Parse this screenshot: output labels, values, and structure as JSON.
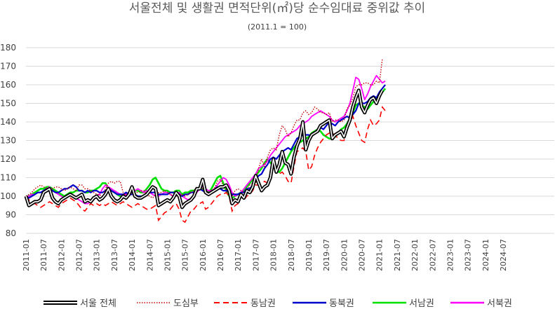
{
  "chart_data": {
    "type": "line",
    "title": "서울전체 및 생활권 면적단위(㎡)당 순수임대료 중위값 추이",
    "subtitle": "(2011.1 = 100)",
    "ylim": [
      80,
      180
    ],
    "yticks": [
      "80",
      "90",
      "100",
      "110",
      "120",
      "130",
      "140",
      "150",
      "160",
      "170",
      "180"
    ],
    "xticks": [
      "2011-01",
      "2011-07",
      "2012-01",
      "2012-07",
      "2013-01",
      "2013-07",
      "2014-01",
      "2014-07",
      "2015-01",
      "2015-07",
      "2016-01",
      "2016-07",
      "2017-01",
      "2017-07",
      "2018-01",
      "2018-07",
      "2019-01",
      "2019-07",
      "2020-01",
      "2020-07",
      "2021-01",
      "2021-07",
      "2022-01",
      "2022-07",
      "2023-01",
      "2023-07",
      "2024-01",
      "2024-07"
    ],
    "legend_position": "bottom",
    "grid": "horizontal",
    "x_monthly_from": "2011-01",
    "series": [
      {
        "name": "서울 전체",
        "color": "#000000",
        "style": "double",
        "values": [
          100,
          95,
          96,
          97,
          97,
          98,
          102,
          103,
          104,
          99,
          97,
          96,
          98,
          99,
          100,
          101,
          100,
          99,
          100,
          101,
          97,
          98,
          97,
          99,
          100,
          98,
          99,
          101,
          104,
          100,
          98,
          97,
          98,
          100,
          99,
          101,
          105,
          100,
          99,
          99,
          100,
          101,
          103,
          105,
          104,
          95,
          96,
          97,
          98,
          97,
          99,
          102,
          100,
          94,
          96,
          97,
          98,
          100,
          104,
          104,
          109,
          102,
          101,
          102,
          103,
          104,
          105,
          105,
          106,
          103,
          96,
          98,
          97,
          101,
          99,
          103,
          102,
          105,
          111,
          107,
          103,
          105,
          106,
          110,
          120,
          113,
          117,
          124,
          118,
          117,
          112,
          121,
          127,
          131,
          140,
          125,
          130,
          133,
          134,
          135,
          138,
          139,
          140,
          141,
          131,
          133,
          134,
          135,
          132,
          137,
          141,
          148,
          153,
          157,
          148,
          145,
          149,
          152,
          153,
          150,
          154,
          157
        ]
      },
      {
        "name": "도심부",
        "color": "#c00000",
        "style": "dotted",
        "values": [
          100,
          101,
          102,
          104,
          105,
          106,
          105,
          104,
          103,
          104,
          105,
          105,
          104,
          103,
          104,
          105,
          104,
          103,
          106,
          106,
          104,
          104,
          103,
          102,
          101,
          101,
          99,
          104,
          107,
          108,
          107,
          108,
          108,
          102,
          100,
          101,
          101,
          102,
          102,
          103,
          103,
          101,
          100,
          99,
          101,
          102,
          102,
          103,
          102,
          101,
          100,
          100,
          100,
          101,
          100,
          101,
          102,
          103,
          105,
          104,
          104,
          103,
          102,
          103,
          104,
          108,
          109,
          106,
          104,
          101,
          100,
          103,
          104,
          103,
          102,
          102,
          106,
          107,
          107,
          115,
          120,
          116,
          121,
          125,
          126,
          125,
          133,
          138,
          136,
          132,
          134,
          138,
          141,
          141,
          145,
          146,
          144,
          145,
          148,
          147,
          145,
          145,
          144,
          145,
          140,
          141,
          141,
          140,
          141,
          147,
          149,
          153,
          159,
          160,
          160,
          161,
          161,
          160,
          160,
          162,
          161,
          174
        ]
      },
      {
        "name": "동남권",
        "color": "#ff0000",
        "style": "dashed",
        "values": [
          100,
          98,
          97,
          96,
          95,
          94,
          95,
          96,
          97,
          96,
          95,
          94,
          96,
          97,
          98,
          99,
          98,
          97,
          95,
          93,
          92,
          94,
          96,
          95,
          96,
          95,
          96,
          95,
          96,
          97,
          96,
          95,
          96,
          97,
          96,
          95,
          94,
          95,
          96,
          95,
          94,
          93,
          93,
          94,
          95,
          87,
          89,
          91,
          92,
          93,
          95,
          96,
          93,
          87,
          86,
          89,
          92,
          93,
          95,
          96,
          97,
          93,
          94,
          96,
          98,
          100,
          101,
          101,
          102,
          100,
          92,
          95,
          96,
          100,
          98,
          100,
          101,
          103,
          106,
          106,
          107,
          108,
          107,
          110,
          117,
          113,
          112,
          113,
          111,
          108,
          107,
          116,
          124,
          125,
          126,
          124,
          114,
          116,
          122,
          126,
          129,
          131,
          133,
          134,
          134,
          133,
          131,
          130,
          130,
          137,
          140,
          143,
          138,
          134,
          130,
          129,
          136,
          141,
          138,
          139,
          141,
          148,
          146
        ]
      },
      {
        "name": "동북권",
        "color": "#0000cd",
        "style": "solid",
        "values": [
          100,
          99,
          100,
          101,
          102,
          102,
          103,
          104,
          104,
          103,
          102,
          102,
          103,
          104,
          104,
          105,
          106,
          105,
          103,
          103,
          102,
          103,
          102,
          103,
          103,
          102,
          102,
          103,
          104,
          103,
          102,
          101,
          101,
          101,
          102,
          101,
          101,
          101,
          100,
          100,
          100,
          101,
          102,
          102,
          102,
          101,
          101,
          101,
          101,
          102,
          102,
          101,
          101,
          100,
          101,
          101,
          102,
          102,
          103,
          104,
          103,
          102,
          102,
          102,
          103,
          105,
          104,
          103,
          103,
          102,
          101,
          101,
          101,
          102,
          102,
          104,
          104,
          106,
          109,
          111,
          112,
          115,
          117,
          120,
          121,
          120,
          122,
          124,
          125,
          126,
          125,
          128,
          131,
          132,
          133,
          133,
          133,
          132,
          134,
          136,
          137,
          136,
          138,
          140,
          139,
          138,
          140,
          141,
          142,
          143,
          142,
          144,
          146,
          150,
          150,
          150,
          151,
          153,
          154,
          153,
          156,
          158,
          160
        ]
      },
      {
        "name": "서남권",
        "color": "#00e000",
        "style": "solid",
        "values": [
          100,
          100,
          101,
          102,
          103,
          104,
          104,
          105,
          105,
          104,
          103,
          102,
          101,
          100,
          101,
          102,
          102,
          103,
          103,
          103,
          102,
          102,
          103,
          103,
          104,
          105,
          107,
          107,
          104,
          103,
          102,
          101,
          100,
          100,
          101,
          101,
          102,
          103,
          103,
          102,
          102,
          104,
          106,
          109,
          110,
          107,
          104,
          103,
          103,
          102,
          102,
          103,
          103,
          101,
          102,
          102,
          103,
          103,
          104,
          105,
          104,
          103,
          102,
          104,
          107,
          110,
          111,
          107,
          103,
          100,
          99,
          100,
          101,
          102,
          103,
          105,
          107,
          109,
          111,
          113,
          115,
          118,
          120,
          118,
          116,
          114,
          113,
          115,
          118,
          121,
          124,
          126,
          128,
          129,
          130,
          131,
          132,
          134,
          135,
          136,
          135,
          133,
          132,
          131,
          131,
          132,
          134,
          136,
          137,
          139,
          142,
          145,
          149,
          150,
          149,
          148,
          147,
          149,
          151,
          153,
          155,
          156,
          158
        ]
      },
      {
        "name": "서북권",
        "color": "#ff00ff",
        "style": "solid",
        "values": [
          100,
          100,
          101,
          101,
          102,
          102,
          103,
          104,
          105,
          103,
          102,
          101,
          100,
          99,
          100,
          101,
          100,
          99,
          98,
          97,
          96,
          96,
          97,
          98,
          100,
          101,
          104,
          106,
          105,
          104,
          103,
          102,
          101,
          100,
          101,
          102,
          102,
          103,
          104,
          103,
          102,
          103,
          102,
          101,
          100,
          100,
          101,
          102,
          102,
          101,
          100,
          101,
          102,
          100,
          99,
          98,
          99,
          100,
          102,
          104,
          105,
          104,
          103,
          103,
          104,
          106,
          108,
          110,
          109,
          106,
          102,
          100,
          101,
          102,
          104,
          106,
          108,
          110,
          112,
          115,
          116,
          117,
          119,
          122,
          124,
          126,
          128,
          130,
          132,
          133,
          134,
          135,
          136,
          138,
          139,
          140,
          141,
          143,
          144,
          145,
          146,
          145,
          144,
          143,
          141,
          140,
          141,
          142,
          143,
          146,
          150,
          157,
          164,
          163,
          158,
          152,
          155,
          159,
          162,
          165,
          163,
          161,
          162
        ]
      }
    ]
  }
}
